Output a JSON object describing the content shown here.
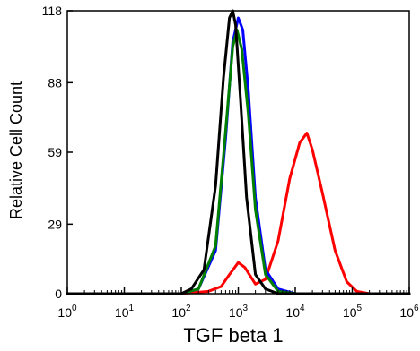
{
  "chart_data": {
    "type": "line",
    "title": "",
    "xlabel": "TGF beta 1",
    "ylabel": "Relative Cell Count",
    "x_scale": "log10",
    "xlim": [
      1,
      1000000
    ],
    "ylim": [
      0,
      118
    ],
    "x_ticks": [
      {
        "base": "10",
        "exp": "0",
        "value": 1
      },
      {
        "base": "10",
        "exp": "1",
        "value": 10
      },
      {
        "base": "10",
        "exp": "2",
        "value": 100
      },
      {
        "base": "10",
        "exp": "3",
        "value": 1000
      },
      {
        "base": "10",
        "exp": "4",
        "value": 10000
      },
      {
        "base": "10",
        "exp": "5",
        "value": 100000
      },
      {
        "base": "10",
        "exp": "6",
        "value": 1000000
      }
    ],
    "y_ticks": [
      "0",
      "29",
      "59",
      "88",
      "118"
    ],
    "series": [
      {
        "color": "#ff0000",
        "x": [
          1,
          100,
          300,
          500,
          700,
          1000,
          1300,
          2000,
          3000,
          5000,
          8000,
          12000,
          16000,
          20000,
          30000,
          50000,
          80000,
          120000,
          200000,
          1000000
        ],
        "y": [
          0,
          0,
          1,
          3,
          8,
          13,
          11,
          4,
          6,
          22,
          48,
          63,
          67,
          60,
          42,
          18,
          5,
          1,
          0,
          0
        ]
      },
      {
        "color": "#0000ff",
        "x": [
          1,
          100,
          200,
          400,
          600,
          800,
          1000,
          1200,
          1500,
          2000,
          3000,
          5000,
          10000,
          1000000
        ],
        "y": [
          0,
          0,
          2,
          18,
          65,
          105,
          115,
          110,
          85,
          40,
          10,
          2,
          0,
          0
        ]
      },
      {
        "color": "#008000",
        "x": [
          1,
          100,
          200,
          400,
          600,
          800,
          950,
          1150,
          1500,
          2000,
          3000,
          5000,
          10000,
          1000000
        ],
        "y": [
          0,
          0,
          2,
          20,
          68,
          103,
          110,
          102,
          75,
          35,
          8,
          1,
          0,
          0
        ]
      },
      {
        "color": "#000000",
        "x": [
          1,
          100,
          150,
          250,
          400,
          550,
          700,
          800,
          900,
          1100,
          1400,
          2000,
          3000,
          5000,
          1000000
        ],
        "y": [
          0,
          0,
          2,
          10,
          45,
          90,
          115,
          118,
          112,
          80,
          40,
          8,
          2,
          0,
          0
        ]
      }
    ]
  }
}
